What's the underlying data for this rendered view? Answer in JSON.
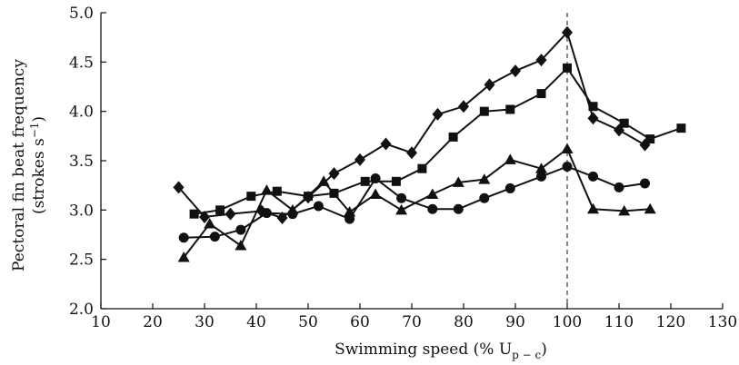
{
  "chart_data": {
    "type": "line",
    "xlabel": "Swimming speed (% U",
    "xlabel_subscript": "p − c",
    "xlabel_close": ")",
    "ylabel_line1": "Pectoral fin beat frequency",
    "ylabel_line2": "(strokes s",
    "ylabel_sup": "−1",
    "ylabel_close": ")",
    "xlim": [
      10,
      130
    ],
    "ylim": [
      2.0,
      5.0
    ],
    "x_ticks": [
      "10",
      "20",
      "30",
      "40",
      "50",
      "60",
      "70",
      "80",
      "90",
      "100",
      "110",
      "120",
      "130"
    ],
    "y_ticks": [
      "2.0",
      "2.5",
      "3.0",
      "3.5",
      "4.0",
      "4.5",
      "5.0"
    ],
    "reference_line_x": 100,
    "grid": false,
    "series": [
      {
        "marker": "diamond",
        "x": [
          25,
          30,
          35,
          41,
          45,
          50,
          55,
          60,
          65,
          70,
          75,
          80,
          85,
          90,
          95,
          100,
          105,
          110,
          115
        ],
        "y": [
          3.23,
          2.93,
          2.96,
          2.99,
          2.92,
          3.13,
          3.37,
          3.51,
          3.67,
          3.58,
          3.97,
          4.05,
          4.27,
          4.41,
          4.52,
          4.8,
          3.93,
          3.81,
          3.66
        ]
      },
      {
        "marker": "square",
        "x": [
          28,
          33,
          39,
          44,
          50,
          55,
          61,
          67,
          72,
          78,
          84,
          89,
          95,
          100,
          105,
          111,
          116,
          122
        ],
        "y": [
          2.96,
          3.0,
          3.14,
          3.19,
          3.14,
          3.17,
          3.29,
          3.29,
          3.42,
          3.74,
          4.0,
          4.02,
          4.18,
          4.44,
          4.05,
          3.88,
          3.72,
          3.83
        ]
      },
      {
        "marker": "triangle",
        "x": [
          26,
          31,
          37,
          42,
          47,
          53,
          58,
          63,
          68,
          74,
          79,
          84,
          89,
          95,
          100,
          105,
          111,
          116
        ],
        "y": [
          2.52,
          2.86,
          2.64,
          3.2,
          3.0,
          3.29,
          2.98,
          3.16,
          3.0,
          3.16,
          3.28,
          3.31,
          3.51,
          3.42,
          3.62,
          3.01,
          2.99,
          3.01
        ]
      },
      {
        "marker": "circle",
        "x": [
          26,
          32,
          37,
          42,
          47,
          52,
          58,
          63,
          68,
          74,
          79,
          84,
          89,
          95,
          100,
          105,
          110,
          115
        ],
        "y": [
          2.72,
          2.73,
          2.8,
          2.97,
          2.96,
          3.04,
          2.91,
          3.32,
          3.12,
          3.01,
          3.01,
          3.12,
          3.22,
          3.34,
          3.44,
          3.34,
          3.23,
          3.27
        ]
      }
    ]
  }
}
